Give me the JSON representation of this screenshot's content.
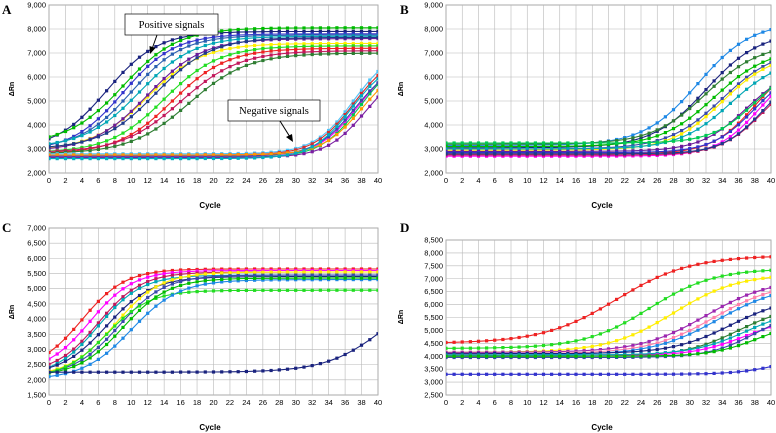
{
  "chart_data": [
    {
      "type": "line",
      "panel": "A",
      "ylabel": "ΔRn",
      "xlabel": "Cycle",
      "ylim": [
        2000,
        9000
      ],
      "yticks": [
        "2,000",
        "3,000",
        "4,000",
        "5,000",
        "6,000",
        "7,000",
        "8,000",
        "9,000"
      ],
      "xlim": [
        0,
        40
      ],
      "xticks": [
        0,
        2,
        4,
        6,
        8,
        10,
        12,
        14,
        16,
        18,
        20,
        22,
        24,
        26,
        28,
        30,
        32,
        34,
        36,
        38,
        40
      ],
      "grid": true,
      "annotations": [
        {
          "text": "Positive signals",
          "x": 12,
          "y": 8900,
          "arrow_to": [
            14,
            7100
          ]
        },
        {
          "text": "Negative signals",
          "x": 28,
          "y": 5800,
          "arrow_to": [
            31,
            3300
          ]
        }
      ],
      "series": [
        {
          "name": "s1",
          "color": "#1a237e",
          "base": 2950,
          "top": 7900,
          "mid": 7,
          "k": 0.32
        },
        {
          "name": "s2",
          "color": "#3333cc",
          "base": 2900,
          "top": 7800,
          "mid": 9,
          "k": 0.32
        },
        {
          "name": "s3",
          "color": "#00bb00",
          "base": 3200,
          "top": 8050,
          "mid": 9,
          "k": 0.3
        },
        {
          "name": "s4",
          "color": "#2a5fb0",
          "base": 3000,
          "top": 7750,
          "mid": 10,
          "k": 0.32
        },
        {
          "name": "s5",
          "color": "#00a6b5",
          "base": 3050,
          "top": 7700,
          "mid": 11,
          "k": 0.3
        },
        {
          "name": "s6",
          "color": "#ffee00",
          "base": 2950,
          "top": 7400,
          "mid": 12,
          "k": 0.3
        },
        {
          "name": "s7",
          "color": "#6a1b9a",
          "base": 2900,
          "top": 7600,
          "mid": 12,
          "k": 0.3
        },
        {
          "name": "s8",
          "color": "#1e3a8a",
          "base": 3000,
          "top": 7650,
          "mid": 13,
          "k": 0.3
        },
        {
          "name": "s9",
          "color": "#22dd22",
          "base": 2850,
          "top": 7300,
          "mid": 14,
          "k": 0.3
        },
        {
          "name": "s10",
          "color": "#ee2222",
          "base": 2800,
          "top": 7200,
          "mid": 15,
          "k": 0.3
        },
        {
          "name": "s11",
          "color": "#c2185b",
          "base": 2850,
          "top": 7100,
          "mid": 16,
          "k": 0.28
        },
        {
          "name": "s12",
          "color": "#2e7d32",
          "base": 2800,
          "top": 7000,
          "mid": 17,
          "k": 0.28
        },
        {
          "name": "n1",
          "color": "#4fc3f7",
          "base": 2800,
          "top": 7200,
          "mid": 37,
          "k": 0.42
        },
        {
          "name": "n2",
          "color": "#ff00ff",
          "base": 2700,
          "top": 6800,
          "mid": 37.5,
          "k": 0.42
        },
        {
          "name": "n3",
          "color": "#d32f2f",
          "base": 2750,
          "top": 7000,
          "mid": 37,
          "k": 0.42
        },
        {
          "name": "n4",
          "color": "#00c853",
          "base": 2650,
          "top": 6900,
          "mid": 37.8,
          "k": 0.42
        },
        {
          "name": "n5",
          "color": "#3949ab",
          "base": 2700,
          "top": 6700,
          "mid": 37.2,
          "k": 0.42
        },
        {
          "name": "n6",
          "color": "#ff9800",
          "base": 2750,
          "top": 6600,
          "mid": 38,
          "k": 0.42
        },
        {
          "name": "n7",
          "color": "#7b1fa2",
          "base": 2650,
          "top": 6500,
          "mid": 38.5,
          "k": 0.42
        },
        {
          "name": "n8",
          "color": "#00acc1",
          "base": 2600,
          "top": 6800,
          "mid": 36.8,
          "k": 0.42
        }
      ]
    },
    {
      "type": "line",
      "panel": "B",
      "ylabel": "ΔRn",
      "xlabel": "Cycle",
      "ylim": [
        2000,
        9000
      ],
      "yticks": [
        "2,000",
        "3,000",
        "4,000",
        "5,000",
        "6,000",
        "7,000",
        "8,000",
        "9,000"
      ],
      "xlim": [
        0,
        40
      ],
      "xticks": [
        0,
        2,
        4,
        6,
        8,
        10,
        12,
        14,
        16,
        18,
        20,
        22,
        24,
        26,
        28,
        30,
        32,
        34,
        36,
        38,
        40
      ],
      "grid": true,
      "annotations": [],
      "series": [
        {
          "name": "s1",
          "color": "#1e88e5",
          "base": 3150,
          "top": 8300,
          "mid": 31,
          "k": 0.3
        },
        {
          "name": "s2",
          "color": "#1a237e",
          "base": 3050,
          "top": 7900,
          "mid": 32,
          "k": 0.3
        },
        {
          "name": "s3",
          "color": "#2e7d32",
          "base": 3200,
          "top": 7400,
          "mid": 32,
          "k": 0.3
        },
        {
          "name": "s4",
          "color": "#00bb00",
          "base": 3100,
          "top": 7200,
          "mid": 33,
          "k": 0.3
        },
        {
          "name": "s5",
          "color": "#3949ab",
          "base": 3000,
          "top": 7200,
          "mid": 34,
          "k": 0.3
        },
        {
          "name": "s6",
          "color": "#ffee00",
          "base": 2950,
          "top": 7000,
          "mid": 34,
          "k": 0.32
        },
        {
          "name": "s7",
          "color": "#00a6b5",
          "base": 3000,
          "top": 6800,
          "mid": 35,
          "k": 0.32
        },
        {
          "name": "s8",
          "color": "#6a1b9a",
          "base": 2900,
          "top": 6500,
          "mid": 37,
          "k": 0.35
        },
        {
          "name": "s9",
          "color": "#ee2222",
          "base": 2800,
          "top": 6800,
          "mid": 38,
          "k": 0.38
        },
        {
          "name": "s10",
          "color": "#ff00ff",
          "base": 2700,
          "top": 6600,
          "mid": 38.5,
          "k": 0.38
        },
        {
          "name": "s11",
          "color": "#3333cc",
          "base": 2850,
          "top": 6500,
          "mid": 38,
          "k": 0.38
        },
        {
          "name": "s12",
          "color": "#c2185b",
          "base": 2750,
          "top": 6300,
          "mid": 39,
          "k": 0.38
        },
        {
          "name": "s13",
          "color": "#00c853",
          "base": 3250,
          "top": 6600,
          "mid": 38,
          "k": 0.38
        },
        {
          "name": "s14",
          "color": "#1e3a8a",
          "base": 2800,
          "top": 6400,
          "mid": 39,
          "k": 0.4
        }
      ]
    },
    {
      "type": "line",
      "panel": "C",
      "ylabel": "ΔRn",
      "xlabel": "Cycle",
      "ylim": [
        1500,
        7000
      ],
      "yticks": [
        "1,500",
        "2,000",
        "2,500",
        "3,000",
        "3,500",
        "4,000",
        "4,500",
        "5,000",
        "5,500",
        "6,000",
        "6,500",
        "7,000"
      ],
      "xlim": [
        0,
        40
      ],
      "xticks": [
        0,
        2,
        4,
        6,
        8,
        10,
        12,
        14,
        16,
        18,
        20,
        22,
        24,
        26,
        28,
        30,
        32,
        34,
        36,
        38,
        40
      ],
      "grid": true,
      "annotations": [],
      "series": [
        {
          "name": "s1",
          "color": "#ee2222",
          "base": 2300,
          "top": 5650,
          "mid": 4,
          "k": 0.38
        },
        {
          "name": "s2",
          "color": "#ff00ff",
          "base": 2250,
          "top": 5600,
          "mid": 5,
          "k": 0.38
        },
        {
          "name": "s3",
          "color": "#c2185b",
          "base": 2200,
          "top": 5550,
          "mid": 6,
          "k": 0.38
        },
        {
          "name": "s4",
          "color": "#00a6b5",
          "base": 2100,
          "top": 5450,
          "mid": 6,
          "k": 0.38
        },
        {
          "name": "s5",
          "color": "#1a237e",
          "base": 2150,
          "top": 5400,
          "mid": 7,
          "k": 0.36
        },
        {
          "name": "s6",
          "color": "#ffee00",
          "base": 2100,
          "top": 5550,
          "mid": 8,
          "k": 0.36
        },
        {
          "name": "s7",
          "color": "#3949ab",
          "base": 2100,
          "top": 5450,
          "mid": 8.5,
          "k": 0.36
        },
        {
          "name": "s8",
          "color": "#22dd22",
          "base": 2050,
          "top": 4950,
          "mid": 7,
          "k": 0.38
        },
        {
          "name": "s9",
          "color": "#1e88e5",
          "base": 2000,
          "top": 5300,
          "mid": 10,
          "k": 0.34
        },
        {
          "name": "s10",
          "color": "#00bb00",
          "base": 2100,
          "top": 5350,
          "mid": 9,
          "k": 0.36
        },
        {
          "name": "n1",
          "color": "#1a237e",
          "base": 2250,
          "top": 5200,
          "mid": 41,
          "k": 0.28
        }
      ]
    },
    {
      "type": "line",
      "panel": "D",
      "ylabel": "ΔRn",
      "xlabel": "Cycle",
      "ylim": [
        2500,
        8500
      ],
      "yticks": [
        "2,500",
        "3,000",
        "3,500",
        "4,000",
        "4,500",
        "5,000",
        "5,500",
        "6,000",
        "6,500",
        "7,000",
        "7,500",
        "8,000",
        "8,500"
      ],
      "xlim": [
        0,
        40
      ],
      "xticks": [
        0,
        2,
        4,
        6,
        8,
        10,
        12,
        14,
        16,
        18,
        20,
        22,
        24,
        26,
        28,
        30,
        32,
        34,
        36,
        38,
        40
      ],
      "grid": true,
      "annotations": [],
      "series": [
        {
          "name": "s1",
          "color": "#ee2222",
          "base": 4500,
          "top": 7900,
          "mid": 21,
          "k": 0.22
        },
        {
          "name": "s2",
          "color": "#22dd22",
          "base": 4300,
          "top": 7400,
          "mid": 25,
          "k": 0.25
        },
        {
          "name": "s3",
          "color": "#ffee00",
          "base": 4150,
          "top": 7200,
          "mid": 28,
          "k": 0.25
        },
        {
          "name": "s4",
          "color": "#9c27b0",
          "base": 4150,
          "top": 7000,
          "mid": 32,
          "k": 0.25
        },
        {
          "name": "s5",
          "color": "#ff80ab",
          "base": 4100,
          "top": 6900,
          "mid": 33,
          "k": 0.25
        },
        {
          "name": "s6",
          "color": "#1e88e5",
          "base": 4050,
          "top": 6800,
          "mid": 33.5,
          "k": 0.25
        },
        {
          "name": "s7",
          "color": "#1a237e",
          "base": 4100,
          "top": 6300,
          "mid": 35,
          "k": 0.28
        },
        {
          "name": "s8",
          "color": "#2e7d32",
          "base": 4000,
          "top": 6000,
          "mid": 36,
          "k": 0.3
        },
        {
          "name": "s9",
          "color": "#00a6b5",
          "base": 4050,
          "top": 5900,
          "mid": 37,
          "k": 0.3
        },
        {
          "name": "s10",
          "color": "#ff00ff",
          "base": 4000,
          "top": 5600,
          "mid": 37,
          "k": 0.3
        },
        {
          "name": "s11",
          "color": "#3949ab",
          "base": 3950,
          "top": 5800,
          "mid": 38,
          "k": 0.35
        },
        {
          "name": "s12",
          "color": "#00bb00",
          "base": 4000,
          "top": 5400,
          "mid": 38.5,
          "k": 0.35
        },
        {
          "name": "n1",
          "color": "#3333cc",
          "base": 3300,
          "top": 4200,
          "mid": 42,
          "k": 0.35
        }
      ]
    }
  ]
}
